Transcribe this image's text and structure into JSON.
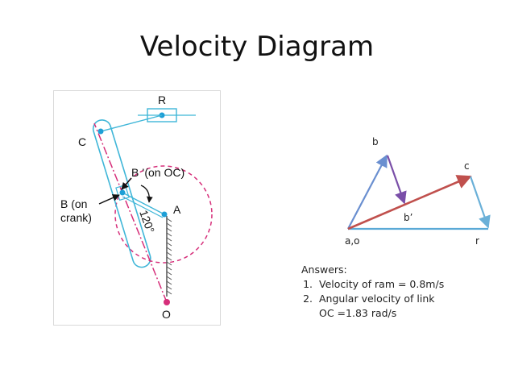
{
  "title": "Velocity Diagram",
  "mechanism": {
    "labels": {
      "R": "R",
      "C": "C",
      "B_prime": "B ’(on OC)",
      "B_crank_line1": "B (on",
      "B_crank_line2": "crank)",
      "A": "A",
      "O": "O",
      "angle": "120°"
    },
    "colors": {
      "link": "#3fb6d8",
      "joint": "#1e9fd6",
      "centerline": "#d62f7a",
      "crank_circle": "#d62f7a",
      "pivot_O": "#d62f7a",
      "ground": "#555555"
    }
  },
  "velocity_diagram": {
    "labels": {
      "b": "b",
      "c": "c",
      "b_prime": "b’",
      "a_o": "a,o",
      "r": "r"
    },
    "colors": {
      "ob": "#6a8fd0",
      "bb_prime": "#7a4fa8",
      "oc": "#c0504d",
      "cr": "#6ab0d8",
      "or": "#5aa9d6"
    }
  },
  "answers": {
    "heading": "Answers:",
    "items": [
      {
        "line1": "Velocity of ram = 0.8m/s"
      },
      {
        "line1": "Angular velocity of link",
        "line2": "OC =1.83 rad/s"
      }
    ]
  }
}
